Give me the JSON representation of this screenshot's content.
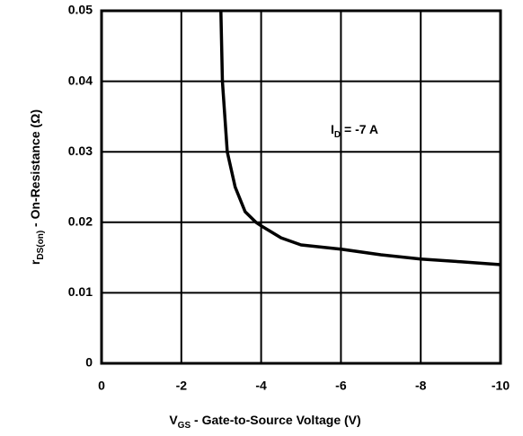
{
  "chart_data": {
    "type": "line",
    "xlabel": [
      "V",
      "GS",
      " - Gate-to-Source Voltage (V)"
    ],
    "ylabel": [
      "r",
      "DS(on)",
      " - On-Resistance (Ω)"
    ],
    "annotation": [
      "I",
      "D",
      " = -7 A"
    ],
    "xlim": [
      0,
      -10
    ],
    "xticks": [
      0,
      -2,
      -4,
      -6,
      -8,
      -10
    ],
    "ylim": [
      0,
      0.05
    ],
    "yticks": [
      0,
      0.01,
      0.02,
      0.03,
      0.04,
      0.05
    ],
    "grid": true,
    "series": [
      {
        "name": "I_D",
        "color": "#000000",
        "x": [
          -2.99,
          -3.03,
          -3.15,
          -3.35,
          -3.6,
          -3.87,
          -4,
          -4.5,
          -5,
          -6,
          -7,
          -8,
          -9,
          -10
        ],
        "values": [
          0.05,
          0.04,
          0.03,
          0.025,
          0.0215,
          0.02,
          0.0195,
          0.0178,
          0.0168,
          0.0162,
          0.0154,
          0.0148,
          0.0144,
          0.014
        ]
      }
    ]
  }
}
